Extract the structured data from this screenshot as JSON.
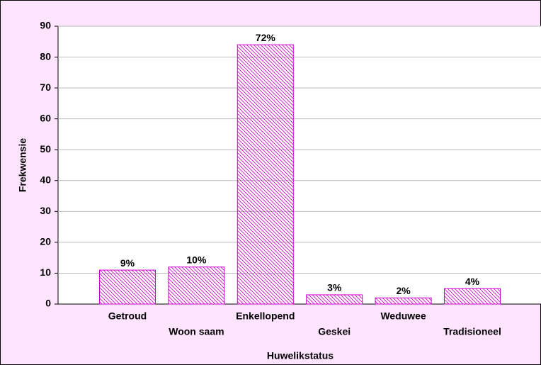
{
  "chart_data": {
    "type": "bar",
    "x_label": "Huwelikstatus",
    "y_label": "Frekwensie",
    "categories": [
      "Getroud",
      "Woon saam",
      "Enkellopend",
      "Geskei",
      "Weduwee",
      "Tradisioneel"
    ],
    "values": [
      11,
      12,
      84,
      3,
      2,
      5
    ],
    "data_labels": [
      "9%",
      "10%",
      "72%",
      "3%",
      "2%",
      "4%"
    ],
    "color": "#cc00cc",
    "ylim": [
      0,
      90
    ],
    "yticks": [
      0,
      10,
      20,
      30,
      40,
      50,
      60,
      70,
      80,
      90
    ],
    "grid": true
  }
}
